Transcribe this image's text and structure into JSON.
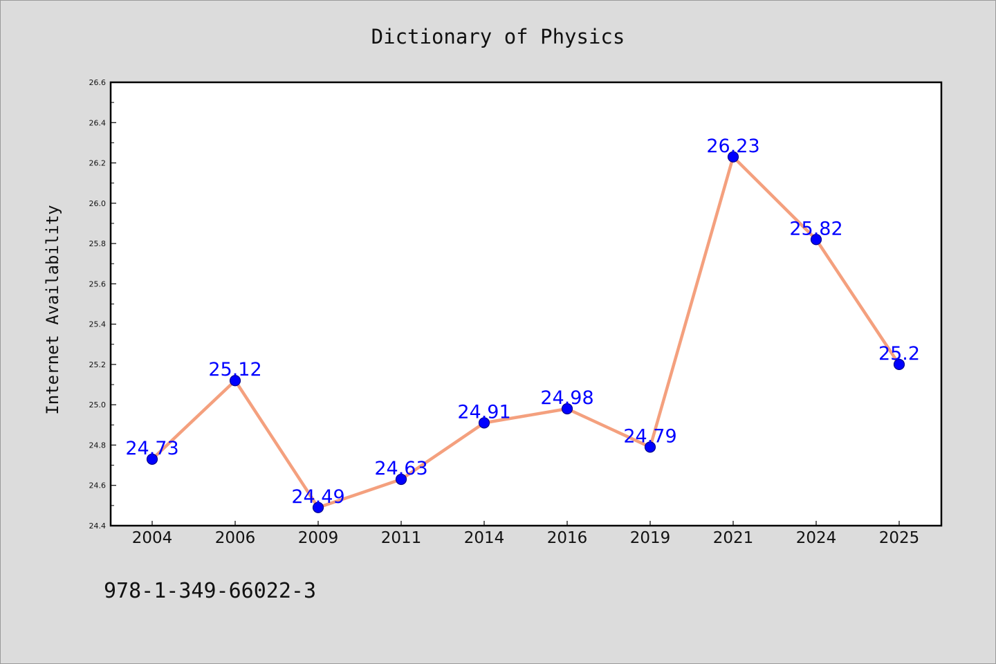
{
  "chart_data": {
    "type": "line",
    "title": "Dictionary of Physics",
    "xlabel": "",
    "ylabel": "Internet Availability",
    "categories": [
      "2004",
      "2006",
      "2009",
      "2011",
      "2014",
      "2016",
      "2019",
      "2021",
      "2024",
      "2025"
    ],
    "series": [
      {
        "values": [
          24.73,
          25.12,
          24.49,
          24.63,
          24.91,
          24.98,
          24.79,
          26.23,
          25.82,
          25.2
        ],
        "labels": [
          "24.73",
          "25.12",
          "24.49",
          "24.63",
          "24.91",
          "24.98",
          "24.79",
          "26.23",
          "25.82",
          "25.2"
        ]
      }
    ],
    "ylim": [
      24.4,
      26.6
    ],
    "yticks": [
      "24.4",
      "24.6",
      "24.8",
      "25.0",
      "25.2",
      "25.4",
      "25.6",
      "25.8",
      "26.0",
      "26.2",
      "26.4",
      "26.6"
    ],
    "grid": false,
    "legend": "none",
    "colors": {
      "line": "#f4a07e",
      "marker": "#0000ff",
      "marker_edge": "#00008b",
      "data_label": "#0000ff",
      "plot_background": "#ffffff",
      "figure_background": "#dcdcdc"
    }
  },
  "footer": {
    "isbn": "978-1-349-66022-3"
  }
}
